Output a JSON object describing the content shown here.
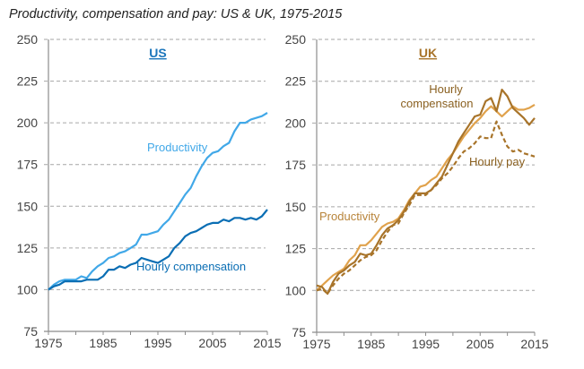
{
  "title": "Productivity, compensation and pay: US & UK, 1975-2015",
  "chart_data": [
    {
      "type": "line",
      "panel_title": "US",
      "title_color": "#1b75bb",
      "xlabel": "",
      "ylabel": "",
      "xlim": [
        1975,
        2015
      ],
      "ylim": [
        75,
        250
      ],
      "x_ticks": [
        1975,
        1985,
        1995,
        2005,
        2015
      ],
      "y_ticks": [
        75,
        100,
        125,
        150,
        175,
        200,
        225,
        250
      ],
      "grid": true,
      "x": [
        1975,
        1976,
        1977,
        1978,
        1979,
        1980,
        1981,
        1982,
        1983,
        1984,
        1985,
        1986,
        1987,
        1988,
        1989,
        1990,
        1991,
        1992,
        1993,
        1994,
        1995,
        1996,
        1997,
        1998,
        1999,
        2000,
        2001,
        2002,
        2003,
        2004,
        2005,
        2006,
        2007,
        2008,
        2009,
        2010,
        2011,
        2012,
        2013,
        2014,
        2015
      ],
      "series": [
        {
          "name": "Productivity",
          "color": "#41a8e8",
          "dashed": false,
          "values": [
            100,
            103,
            105,
            106,
            106,
            106,
            108,
            107,
            111,
            114,
            116,
            119,
            120,
            122,
            123,
            125,
            127,
            133,
            133,
            134,
            135,
            139,
            142,
            147,
            152,
            157,
            161,
            168,
            174,
            179,
            182,
            183,
            186,
            188,
            195,
            200,
            200,
            202,
            203,
            204,
            206
          ]
        },
        {
          "name": "Hourly compensation",
          "color": "#0a6eb4",
          "dashed": false,
          "values": [
            100,
            102,
            103,
            105,
            105,
            105,
            105,
            106,
            106,
            106,
            108,
            112,
            112,
            114,
            113,
            115,
            116,
            119,
            118,
            117,
            116,
            118,
            120,
            125,
            128,
            132,
            134,
            135,
            137,
            139,
            140,
            140,
            142,
            141,
            143,
            143,
            142,
            143,
            142,
            144,
            148
          ]
        }
      ]
    },
    {
      "type": "line",
      "panel_title": "UK",
      "title_color": "#a8742a",
      "xlabel": "",
      "ylabel": "",
      "xlim": [
        1975,
        2015
      ],
      "ylim": [
        75,
        250
      ],
      "x_ticks": [
        1975,
        1985,
        1995,
        2005,
        2015
      ],
      "y_ticks": [
        75,
        100,
        125,
        150,
        175,
        200,
        225,
        250
      ],
      "grid": true,
      "x": [
        1975,
        1976,
        1977,
        1978,
        1979,
        1980,
        1981,
        1982,
        1983,
        1984,
        1985,
        1986,
        1987,
        1988,
        1989,
        1990,
        1991,
        1992,
        1993,
        1994,
        1995,
        1996,
        1997,
        1998,
        1999,
        2000,
        2001,
        2002,
        2003,
        2004,
        2005,
        2006,
        2007,
        2008,
        2009,
        2010,
        2011,
        2012,
        2013,
        2014,
        2015
      ],
      "series": [
        {
          "name": "Productivity",
          "color": "#e0a24c",
          "dashed": false,
          "values": [
            100,
            103,
            106,
            109,
            111,
            113,
            118,
            121,
            127,
            127,
            130,
            134,
            138,
            140,
            141,
            143,
            148,
            154,
            158,
            162,
            163,
            166,
            168,
            173,
            178,
            182,
            187,
            192,
            196,
            200,
            203,
            207,
            210,
            207,
            204,
            207,
            210,
            208,
            208,
            209,
            211
          ]
        },
        {
          "name": "Hourly compensation",
          "color": "#a8742a",
          "dashed": false,
          "values": [
            103,
            102,
            98,
            105,
            110,
            112,
            115,
            117,
            122,
            121,
            122,
            127,
            133,
            137,
            139,
            142,
            147,
            153,
            158,
            158,
            158,
            160,
            164,
            168,
            175,
            182,
            189,
            194,
            199,
            204,
            205,
            213,
            215,
            207,
            220,
            216,
            209,
            206,
            203,
            199,
            203
          ]
        },
        {
          "name": "Hourly pay",
          "color": "#a8742a",
          "dashed": true,
          "values": [
            100,
            101,
            98,
            103,
            107,
            110,
            112,
            115,
            118,
            120,
            121,
            124,
            130,
            135,
            139,
            140,
            146,
            151,
            157,
            157,
            157,
            160,
            163,
            167,
            170,
            174,
            179,
            183,
            185,
            188,
            192,
            191,
            191,
            201,
            193,
            186,
            183,
            184,
            182,
            181,
            180
          ]
        }
      ]
    }
  ],
  "labels": {
    "us_title": "US",
    "uk_title": "UK",
    "us_productivity": "Productivity",
    "us_compensation": "Hourly compensation",
    "uk_compensation_line1": "Hourly",
    "uk_compensation_line2": "compensation",
    "uk_pay": "Hourly pay",
    "uk_productivity": "Productivity"
  }
}
